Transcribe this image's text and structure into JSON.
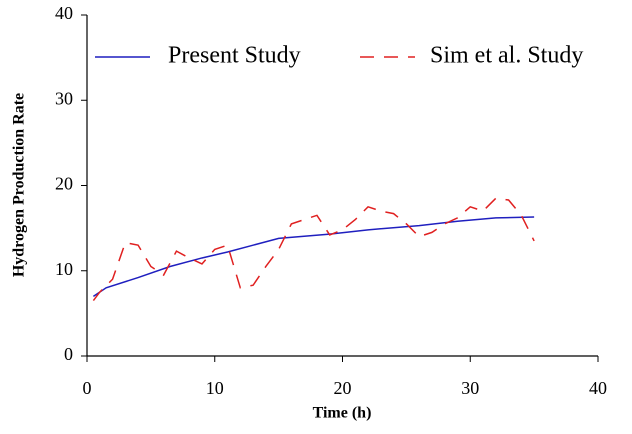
{
  "chart_data": {
    "type": "line",
    "xlabel": "Time (h)",
    "ylabel": "Hydrogen Production Rate",
    "xlim": [
      0,
      40
    ],
    "xticks": [
      0,
      10,
      20,
      30,
      40
    ],
    "ylim": [
      0,
      40
    ],
    "yticks": [
      0,
      10,
      20,
      30,
      40
    ],
    "grid": false,
    "legend": "top",
    "series": [
      {
        "name": "Present Study",
        "color": "#1f1fbf",
        "dash": "solid",
        "x": [
          0.5,
          1.5,
          4,
          6.5,
          9,
          11,
          13,
          15,
          19,
          22,
          26,
          29,
          32,
          35
        ],
        "values": [
          7,
          8,
          9.2,
          10.5,
          11.5,
          12.2,
          13,
          13.8,
          14.3,
          14.8,
          15.3,
          15.8,
          16.2,
          16.3
        ]
      },
      {
        "name": "Sim et al. Study",
        "color": "#e02020",
        "dash": "dashed",
        "x": [
          0.5,
          1,
          2,
          3,
          4,
          5,
          6,
          7,
          8,
          9,
          10,
          11,
          12,
          13,
          14,
          15,
          16,
          18,
          19,
          20,
          21,
          22,
          23,
          24,
          25,
          26,
          27,
          28,
          29,
          30,
          31,
          32,
          33,
          34,
          35
        ],
        "values": [
          6.5,
          7.5,
          9,
          13.3,
          13,
          10.5,
          9.5,
          12.3,
          11.5,
          10.8,
          12.5,
          13,
          8,
          8.3,
          10.5,
          12.5,
          15.5,
          16.5,
          14.2,
          14.8,
          16,
          17.5,
          17,
          16.7,
          15.5,
          14,
          14.5,
          15.5,
          16.2,
          17.5,
          17,
          18.5,
          18.3,
          16.5,
          13.5
        ]
      }
    ]
  }
}
